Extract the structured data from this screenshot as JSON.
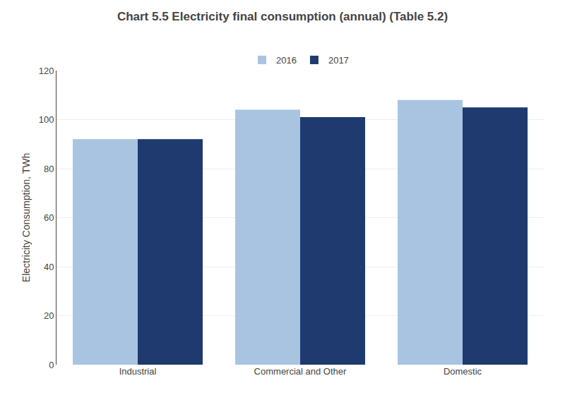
{
  "chart_data": {
    "type": "bar",
    "title": "Chart 5.5 Electricity final consumption (annual) (Table 5.2)",
    "ylabel": "Electricity Consumption, TWh",
    "categories": [
      "Industrial",
      "Commercial and Other",
      "Domestic"
    ],
    "series": [
      {
        "name": "2016",
        "color": "#a8c4e0",
        "values": [
          92,
          104,
          108
        ]
      },
      {
        "name": "2017",
        "color": "#1e3a6e",
        "values": [
          92,
          101,
          105
        ]
      }
    ],
    "ylim": [
      0,
      120
    ],
    "yticks": [
      0,
      20,
      40,
      60,
      80,
      100,
      120
    ],
    "grid": true,
    "legend": "top"
  }
}
